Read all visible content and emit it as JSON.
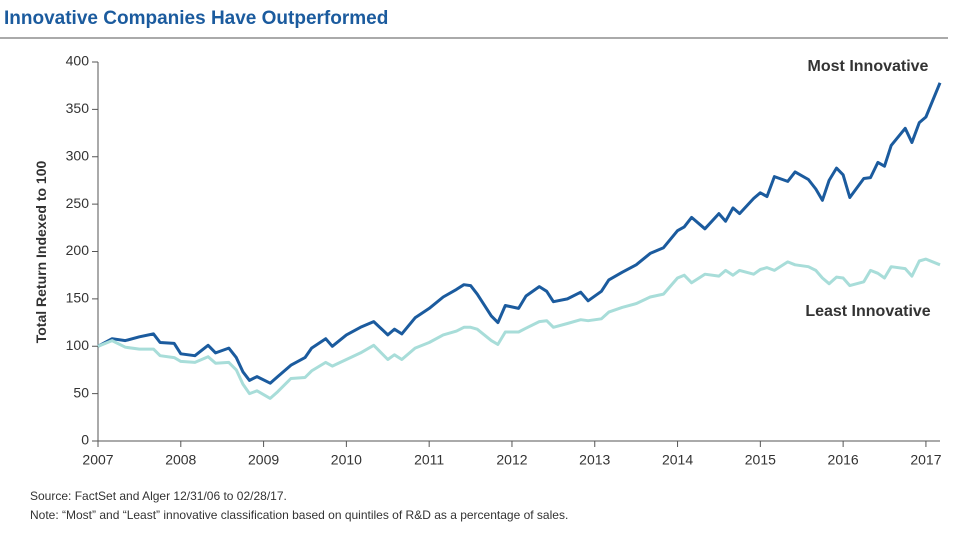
{
  "chart_data": {
    "type": "line",
    "title": "Innovative Companies Have Outperformed",
    "y_label": "Total Return Indexed to 100",
    "source": "Source:  FactSet and Alger 12/31/06 to 02/28/17.",
    "note": "Note:  “Most” and “Least” innovative classification based on quintiles of R&D as a percentage of sales.",
    "x": [
      2007,
      2007.17,
      2007.33,
      2007.5,
      2007.67,
      2007.75,
      2007.92,
      2008,
      2008.17,
      2008.33,
      2008.42,
      2008.58,
      2008.67,
      2008.75,
      2008.83,
      2008.92,
      2009.08,
      2009.17,
      2009.33,
      2009.5,
      2009.58,
      2009.75,
      2009.83,
      2010,
      2010.17,
      2010.33,
      2010.5,
      2010.58,
      2010.67,
      2010.83,
      2011,
      2011.17,
      2011.33,
      2011.42,
      2011.5,
      2011.58,
      2011.75,
      2011.83,
      2011.92,
      2012.08,
      2012.17,
      2012.33,
      2012.42,
      2012.5,
      2012.67,
      2012.83,
      2012.92,
      2013.08,
      2013.17,
      2013.33,
      2013.5,
      2013.67,
      2013.83,
      2014,
      2014.08,
      2014.17,
      2014.33,
      2014.5,
      2014.58,
      2014.67,
      2014.75,
      2014.92,
      2015,
      2015.08,
      2015.17,
      2015.33,
      2015.42,
      2015.58,
      2015.67,
      2015.75,
      2015.83,
      2015.92,
      2016,
      2016.08,
      2016.25,
      2016.33,
      2016.42,
      2016.5,
      2016.58,
      2016.75,
      2016.83,
      2016.92,
      2017,
      2017.17
    ],
    "series": [
      {
        "name": "Most Innovative",
        "color": "#1b5b9e",
        "values": [
          100,
          108,
          106,
          110,
          113,
          104,
          103,
          92,
          90,
          101,
          93,
          98,
          88,
          73,
          64,
          68,
          61,
          68,
          80,
          88,
          98,
          108,
          100,
          112,
          120,
          126,
          112,
          118,
          113,
          130,
          140,
          152,
          160,
          165,
          164,
          155,
          132,
          125,
          143,
          140,
          153,
          163,
          158,
          147,
          150,
          157,
          148,
          158,
          170,
          178,
          186,
          198,
          204,
          222,
          226,
          236,
          224,
          240,
          232,
          246,
          240,
          256,
          262,
          258,
          279,
          274,
          284,
          276,
          266,
          254,
          275,
          288,
          281,
          257,
          277,
          278,
          294,
          290,
          312,
          330,
          315,
          336,
          342,
          378
        ]
      },
      {
        "name": "Least Innovative",
        "color": "#a8ddd9",
        "values": [
          100,
          106,
          99,
          97,
          97,
          90,
          88,
          84,
          83,
          89,
          82,
          83,
          75,
          60,
          50,
          53,
          45,
          52,
          66,
          67,
          74,
          83,
          79,
          86,
          93,
          101,
          86,
          91,
          86,
          98,
          104,
          112,
          116,
          120,
          120,
          118,
          106,
          102,
          115,
          115,
          119,
          126,
          127,
          120,
          124,
          128,
          127,
          129,
          136,
          141,
          145,
          152,
          155,
          172,
          175,
          167,
          176,
          174,
          180,
          175,
          180,
          176,
          181,
          183,
          180,
          189,
          186,
          184,
          180,
          172,
          166,
          173,
          172,
          164,
          168,
          180,
          177,
          172,
          184,
          182,
          174,
          190,
          192,
          186
        ]
      }
    ],
    "xlim": [
      2007,
      2017.17
    ],
    "xticks": [
      2007,
      2008,
      2009,
      2010,
      2011,
      2012,
      2013,
      2014,
      2015,
      2016,
      2017
    ],
    "ylim": [
      0,
      400
    ],
    "yticks": [
      0,
      50,
      100,
      150,
      200,
      250,
      300,
      350,
      400
    ],
    "grid": false
  }
}
